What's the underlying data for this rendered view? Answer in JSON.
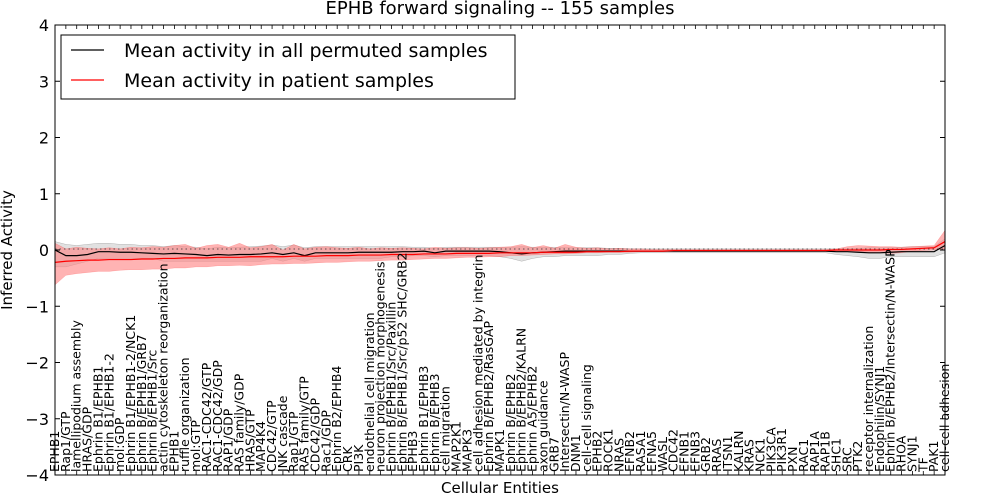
{
  "chart_data": {
    "type": "line",
    "title": "EPHB forward signaling -- 155 samples",
    "xlabel": "Cellular Entities",
    "ylabel": "Inferred Activity",
    "ylim": [
      -4,
      4
    ],
    "yticks": [
      -4,
      -3,
      -2,
      -1,
      0,
      1,
      2,
      3,
      4
    ],
    "legend_position": "top-left",
    "legend": [
      {
        "label": "Mean activity in all permuted samples",
        "color": "#000000"
      },
      {
        "label": "Mean activity in patient samples",
        "color": "#ff0000"
      }
    ],
    "categories": [
      "EPHB1",
      "Rap1/GTP",
      "lamellipodium assembly",
      "HRAS/GDP",
      "Ephrin B1/EPHB1",
      "Ephrin B1/EPHB1-2",
      "mol:GDP",
      "Ephrin B1/EPHB1-2/NCK1",
      "Ephrin B/EPHB1/GRB7",
      "Ephrin B/EPHB1/Src",
      "actin cytoskeleton reorganization",
      "EPHB1",
      "ruffle organization",
      "mol:GTP",
      "RAC1-CDC42/GTP",
      "RAC1-CDC42/GDP",
      "RAP1/GDP",
      "RAS family/GDP",
      "HRAS/GTP",
      "MAP4K4",
      "CDC42/GTP",
      "JNK cascade",
      "Rap1/GTP",
      "RAS family/GTP",
      "CDC42/GDP",
      "Rac1/GDP",
      "Ephrin B2/EPHB4",
      "CRK",
      "PI3K",
      "endothelial cell migration",
      "neuron projection morphogenesis",
      "Ephrin B/EPHB1/Src/Paxillin",
      "Ephrin B/EPHB1/Src/p52 SHC/GRB2",
      "EPHB3",
      "Ephrin B1/EPHB3",
      "Ephrin B/EPHB3",
      "cell migration",
      "MAP2K1",
      "MAPK3",
      "cell adhesion mediated by integrin",
      "Ephrin B/EPHB2/RasGAP",
      "MAPK1",
      "Ephrin B/EPHB2",
      "Ephrin B/EPHB2/KALRN",
      "Ephrin A5/EPHB2",
      "axon guidance",
      "GRB7",
      "Intersectin/N-WASP",
      "DNM1",
      "cell-cell signaling",
      "EPHB2",
      "ROCK1",
      "NRAS",
      "EFNB2",
      "RASA1",
      "EFNA5",
      "WASL",
      "CDC42",
      "EFNB1",
      "EFNB3",
      "GRB2",
      "RRAS",
      "ITSN1",
      "KALRN",
      "KRAS",
      "NCK1",
      "PIK3CA",
      "PIK3R1",
      "PXN",
      "RAC1",
      "RAP1A",
      "RAP1B",
      "SHC1",
      "SRC",
      "PTK2",
      "receptor internalization",
      "Endophilin/SYNJ1",
      "Ephrin B/EPHB2/Intersectin/N-WASP",
      "RHOA",
      "SYNJ1",
      "TF",
      "PAK1",
      "cell-cell adhesion"
    ],
    "series": [
      {
        "name": "Mean activity in all permuted samples",
        "color": "#000000",
        "values": [
          0.0,
          -0.1,
          -0.1,
          -0.08,
          -0.03,
          -0.03,
          -0.04,
          -0.04,
          -0.05,
          -0.06,
          -0.07,
          -0.06,
          -0.07,
          -0.08,
          -0.1,
          -0.08,
          -0.09,
          -0.08,
          -0.08,
          -0.07,
          -0.05,
          -0.08,
          -0.05,
          -0.1,
          -0.05,
          -0.05,
          -0.05,
          -0.05,
          -0.04,
          -0.04,
          -0.04,
          -0.04,
          -0.03,
          -0.03,
          -0.02,
          -0.05,
          -0.02,
          -0.02,
          -0.02,
          -0.02,
          -0.02,
          -0.03,
          -0.05,
          -0.07,
          -0.05,
          -0.04,
          -0.03,
          -0.02,
          -0.02,
          -0.02,
          -0.02,
          -0.02,
          -0.02,
          -0.02,
          -0.02,
          -0.02,
          -0.02,
          -0.02,
          -0.02,
          -0.02,
          -0.02,
          -0.02,
          -0.02,
          -0.02,
          -0.02,
          -0.02,
          -0.02,
          -0.02,
          -0.02,
          -0.02,
          -0.02,
          -0.02,
          -0.03,
          -0.03,
          -0.04,
          -0.05,
          -0.05,
          -0.04,
          -0.03,
          -0.03,
          -0.03,
          -0.03,
          0.08
        ],
        "lower": [
          -0.3,
          -0.3,
          -0.25,
          -0.2,
          -0.15,
          -0.15,
          -0.15,
          -0.15,
          -0.15,
          -0.15,
          -0.2,
          -0.2,
          -0.2,
          -0.2,
          -0.2,
          -0.2,
          -0.2,
          -0.2,
          -0.2,
          -0.2,
          -0.15,
          -0.2,
          -0.15,
          -0.2,
          -0.15,
          -0.15,
          -0.15,
          -0.15,
          -0.15,
          -0.15,
          -0.15,
          -0.12,
          -0.12,
          -0.1,
          -0.1,
          -0.12,
          -0.1,
          -0.1,
          -0.1,
          -0.1,
          -0.1,
          -0.12,
          -0.15,
          -0.2,
          -0.15,
          -0.12,
          -0.12,
          -0.1,
          -0.1,
          -0.1,
          -0.1,
          -0.08,
          -0.08,
          -0.06,
          -0.05,
          -0.05,
          -0.05,
          -0.05,
          -0.05,
          -0.05,
          -0.05,
          -0.05,
          -0.05,
          -0.05,
          -0.05,
          -0.05,
          -0.05,
          -0.05,
          -0.05,
          -0.05,
          -0.05,
          -0.05,
          -0.08,
          -0.1,
          -0.12,
          -0.15,
          -0.15,
          -0.12,
          -0.12,
          -0.12,
          -0.12,
          -0.12,
          -0.05
        ],
        "upper": [
          0.15,
          0.1,
          0.08,
          0.1,
          0.12,
          0.12,
          0.1,
          0.1,
          0.08,
          0.08,
          0.06,
          0.08,
          0.06,
          0.05,
          0.02,
          0.05,
          0.04,
          0.05,
          0.06,
          0.07,
          0.09,
          0.06,
          0.09,
          0.04,
          0.06,
          0.06,
          0.06,
          0.06,
          0.06,
          0.06,
          0.06,
          0.06,
          0.06,
          0.05,
          0.05,
          0.03,
          0.05,
          0.05,
          0.05,
          0.05,
          0.05,
          0.05,
          0.05,
          0.06,
          0.05,
          0.05,
          0.05,
          0.04,
          0.04,
          0.04,
          0.04,
          0.03,
          0.03,
          0.02,
          0.02,
          0.02,
          0.02,
          0.02,
          0.02,
          0.02,
          0.02,
          0.02,
          0.02,
          0.02,
          0.02,
          0.02,
          0.02,
          0.02,
          0.02,
          0.02,
          0.02,
          0.02,
          0.02,
          0.02,
          0.03,
          0.04,
          0.04,
          0.04,
          0.05,
          0.06,
          0.06,
          0.06,
          0.2
        ]
      },
      {
        "name": "Mean activity in patient samples",
        "color": "#ff0000",
        "values": [
          -0.22,
          -0.2,
          -0.19,
          -0.18,
          -0.18,
          -0.17,
          -0.17,
          -0.17,
          -0.16,
          -0.16,
          -0.15,
          -0.15,
          -0.14,
          -0.14,
          -0.14,
          -0.13,
          -0.13,
          -0.13,
          -0.12,
          -0.12,
          -0.12,
          -0.12,
          -0.11,
          -0.11,
          -0.11,
          -0.1,
          -0.1,
          -0.1,
          -0.09,
          -0.09,
          -0.09,
          -0.08,
          -0.08,
          -0.08,
          -0.07,
          -0.07,
          -0.07,
          -0.06,
          -0.06,
          -0.06,
          -0.06,
          -0.05,
          -0.05,
          -0.05,
          -0.05,
          -0.04,
          -0.04,
          -0.04,
          -0.04,
          -0.03,
          -0.03,
          -0.03,
          -0.03,
          -0.02,
          -0.02,
          -0.02,
          -0.02,
          -0.01,
          -0.01,
          -0.01,
          -0.01,
          -0.01,
          -0.01,
          -0.01,
          -0.01,
          -0.01,
          -0.01,
          -0.01,
          -0.01,
          -0.01,
          -0.01,
          -0.01,
          0.0,
          0.0,
          0.0,
          0.0,
          0.0,
          0.01,
          0.01,
          0.02,
          0.03,
          0.04,
          0.15
        ],
        "lower": [
          -0.62,
          -0.45,
          -0.42,
          -0.4,
          -0.38,
          -0.38,
          -0.36,
          -0.35,
          -0.35,
          -0.34,
          -0.34,
          -0.32,
          -0.32,
          -0.3,
          -0.3,
          -0.28,
          -0.28,
          -0.27,
          -0.28,
          -0.26,
          -0.25,
          -0.25,
          -0.24,
          -0.24,
          -0.23,
          -0.22,
          -0.22,
          -0.21,
          -0.2,
          -0.2,
          -0.19,
          -0.18,
          -0.18,
          -0.17,
          -0.16,
          -0.15,
          -0.15,
          -0.14,
          -0.13,
          -0.13,
          -0.12,
          -0.12,
          -0.1,
          -0.1,
          -0.09,
          -0.08,
          -0.07,
          -0.07,
          -0.06,
          -0.05,
          -0.05,
          -0.04,
          -0.04,
          -0.04,
          -0.03,
          -0.03,
          -0.03,
          -0.02,
          -0.02,
          -0.02,
          -0.02,
          -0.02,
          -0.02,
          -0.02,
          -0.02,
          -0.02,
          -0.02,
          -0.02,
          -0.02,
          -0.02,
          -0.02,
          -0.02,
          -0.02,
          -0.03,
          -0.03,
          -0.04,
          -0.05,
          -0.06,
          -0.05,
          -0.02,
          -0.01,
          0.0,
          0.02
        ],
        "upper": [
          0.12,
          0.02,
          0.05,
          0.03,
          0.02,
          0.04,
          0.02,
          0.05,
          0.04,
          0.06,
          0.05,
          0.08,
          0.1,
          0.03,
          0.08,
          0.1,
          0.05,
          0.12,
          0.04,
          0.06,
          0.1,
          0.0,
          0.1,
          0.02,
          0.05,
          0.06,
          0.04,
          0.03,
          0.05,
          0.02,
          0.04,
          0.03,
          0.04,
          0.03,
          0.02,
          0.05,
          0.03,
          0.04,
          0.04,
          0.03,
          0.04,
          0.05,
          0.06,
          0.1,
          0.04,
          0.08,
          0.03,
          0.1,
          0.05,
          0.03,
          0.04,
          0.02,
          0.03,
          0.02,
          0.02,
          0.01,
          0.01,
          0.01,
          0.01,
          0.01,
          0.01,
          0.01,
          0.01,
          0.01,
          0.01,
          0.01,
          0.01,
          0.01,
          0.01,
          0.01,
          0.01,
          0.01,
          0.02,
          0.06,
          0.08,
          0.07,
          0.06,
          0.06,
          0.05,
          0.06,
          0.07,
          0.08,
          0.35
        ]
      }
    ]
  }
}
